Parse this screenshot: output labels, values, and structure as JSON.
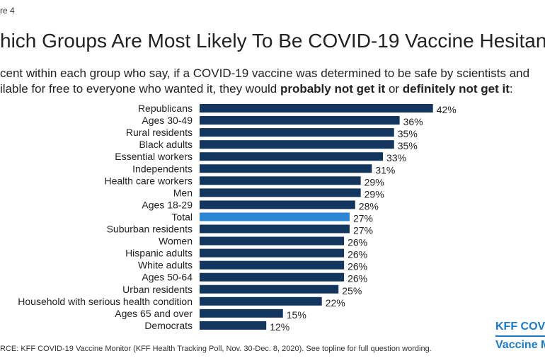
{
  "figure_label": "re 4",
  "title": "hich Groups Are Most Likely To Be COVID-19 Vaccine Hesitan",
  "subtitle": {
    "line1": "cent within each group who say, if a COVID-19 vaccine was determined to be safe by scientists and",
    "line2_pre": "ilable for free to everyone who wanted it, they would ",
    "bold1": "probably not get it",
    "mid": " or ",
    "bold2": "definitely not get it",
    "end": ":"
  },
  "source": "RCE: KFF COVID-19 Vaccine Monitor (KFF Health Tracking Poll, Nov. 30-Dec. 8, 2020). See topline for full question wording.",
  "logo": {
    "line1": "KFF COVI",
    "line2": "Vaccine M"
  },
  "colors": {
    "bar": "#12365e",
    "highlight": "#2b86d3",
    "logo": "#1a7bc6"
  },
  "chart_data": {
    "type": "bar",
    "orientation": "horizontal",
    "categories": [
      "Republicans",
      "Ages 30-49",
      "Rural residents",
      "Black adults",
      "Essential workers",
      "Independents",
      "Health care workers",
      "Men",
      "Ages 18-29",
      "Total",
      "Suburban residents",
      "Women",
      "Hispanic adults",
      "White adults",
      "Ages 50-64",
      "Urban residents",
      "Household with serious health condition",
      "Ages 65 and over",
      "Democrats"
    ],
    "values": [
      42,
      36,
      35,
      35,
      33,
      31,
      29,
      29,
      28,
      27,
      27,
      26,
      26,
      26,
      26,
      25,
      22,
      15,
      12
    ],
    "labels": [
      "42%",
      "36%",
      "35%",
      "35%",
      "33%",
      "31%",
      "29%",
      "29%",
      "28%",
      "27%",
      "27%",
      "26%",
      "26%",
      "26%",
      "26%",
      "25%",
      "22%",
      "15%",
      "12%"
    ],
    "highlight": "Total",
    "unit": "%",
    "xlim": [
      0,
      42
    ],
    "grid": false,
    "legend": "none"
  }
}
